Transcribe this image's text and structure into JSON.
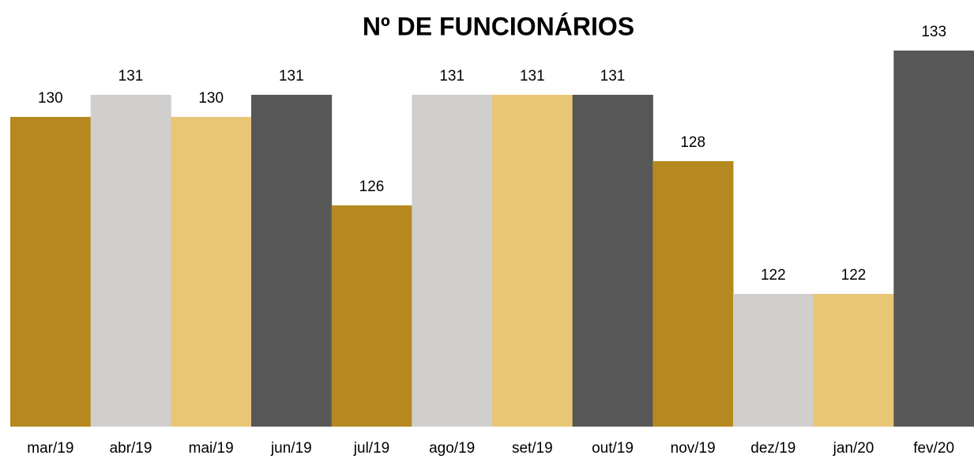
{
  "chart_data": {
    "type": "bar",
    "title": "Nº DE FUNCIONÁRIOS",
    "categories": [
      "mar/19",
      "abr/19",
      "mai/19",
      "jun/19",
      "jul/19",
      "ago/19",
      "set/19",
      "out/19",
      "nov/19",
      "dez/19",
      "jan/20",
      "fev/20"
    ],
    "values": [
      130,
      131,
      130,
      131,
      126,
      131,
      131,
      131,
      128,
      122,
      122,
      133
    ],
    "colors": [
      "#b5891f",
      "#d0cfcd",
      "#e8c676",
      "#575757",
      "#b5891f",
      "#d0cfcd",
      "#e8c676",
      "#575757",
      "#b5891f",
      "#d0cfcd",
      "#e8c676",
      "#575757"
    ],
    "ylim": [
      116,
      134
    ]
  }
}
